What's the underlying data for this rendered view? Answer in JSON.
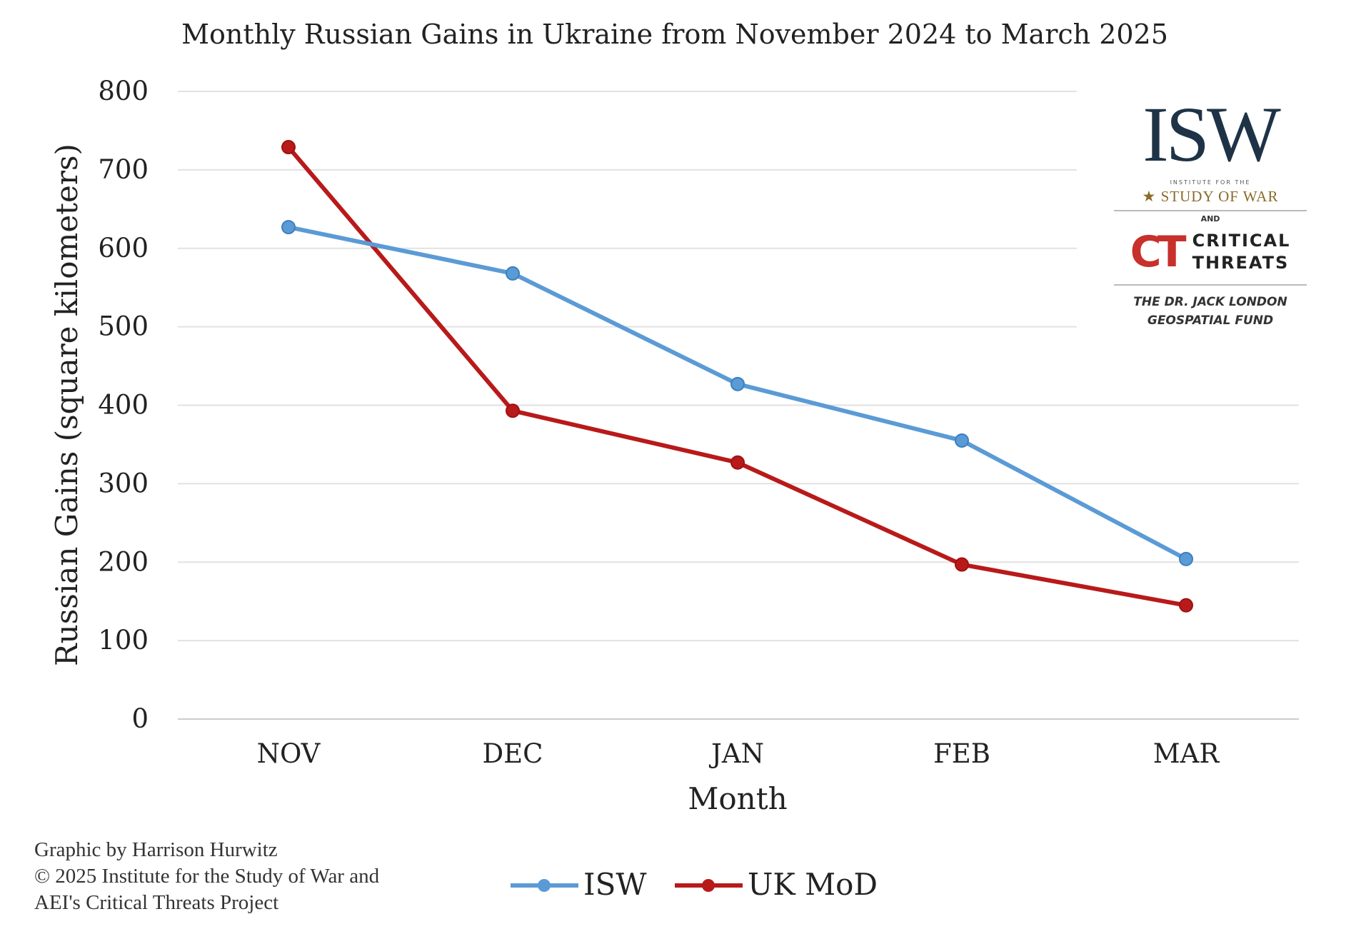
{
  "chart_data": {
    "type": "line",
    "title": "Monthly Russian Gains in Ukraine from November 2024 to March 2025",
    "xlabel": "Month",
    "ylabel": "Russian Gains (square kilometers)",
    "categories": [
      "NOV",
      "DEC",
      "JAN",
      "FEB",
      "MAR"
    ],
    "ylim": [
      0,
      800
    ],
    "yticks": [
      0,
      100,
      200,
      300,
      400,
      500,
      600,
      700,
      800
    ],
    "grid": true,
    "legend_position": "bottom",
    "series": [
      {
        "name": "ISW",
        "color": "#5b9bd5",
        "values": [
          627,
          568,
          427,
          355,
          204
        ]
      },
      {
        "name": "UK MoD",
        "color": "#b81a1a",
        "values": [
          729,
          393,
          327,
          197,
          145
        ]
      }
    ]
  },
  "footer": {
    "line1": "Graphic by Harrison Hurwitz",
    "line2": "© 2025 Institute for the Study of War and",
    "line3": "AEI's Critical Threats Project"
  },
  "logo": {
    "isw": "ISW",
    "isw_sub_small": "INSTITUTE FOR THE",
    "isw_sub": "STUDY OF WAR",
    "and": "AND",
    "ct_mark": "CT",
    "ct_line1": "CRITICAL",
    "ct_line2": "THREATS",
    "fund_line1": "THE DR. JACK LONDON",
    "fund_line2": "GEOSPATIAL FUND"
  }
}
